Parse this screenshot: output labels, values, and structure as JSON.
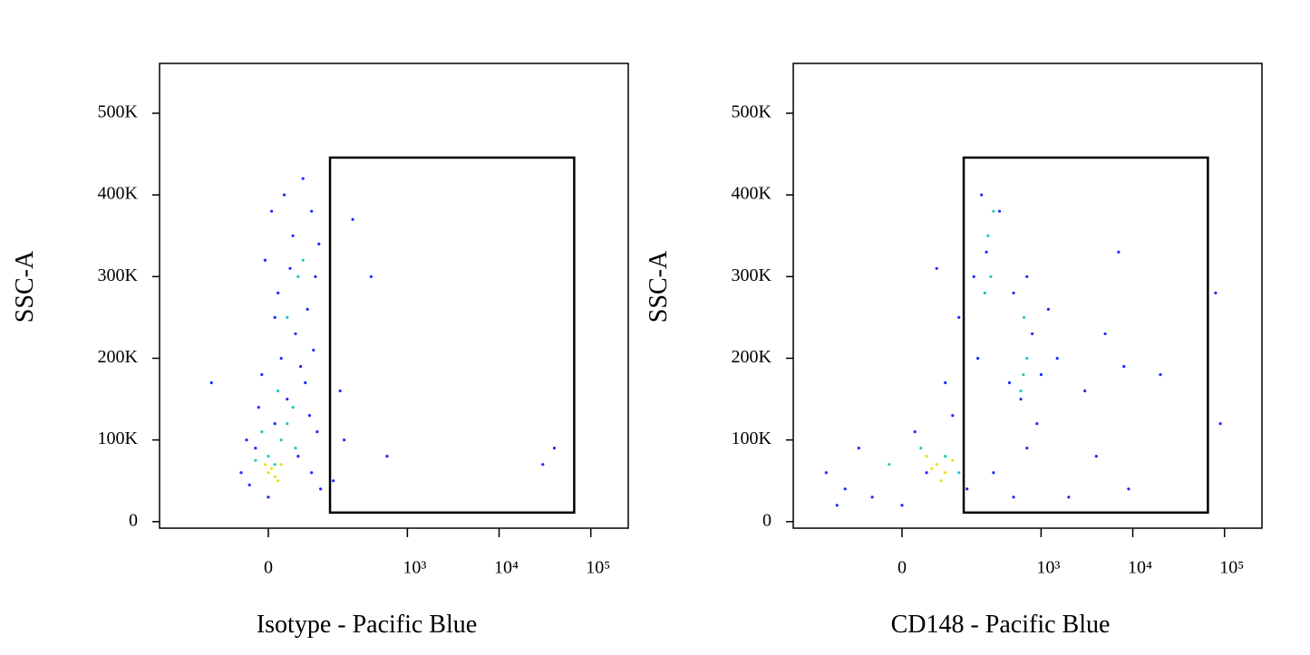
{
  "chart_data": [
    {
      "type": "scatter",
      "x_label": "Isotype - Pacific Blue",
      "y_label": "SSC-A",
      "xscale": "asinh",
      "xscale_width": 61,
      "xlim": [
        -466,
        256000
      ],
      "xticks": [
        0,
        {
          "value": 1000,
          "label": "10³"
        },
        {
          "value": 10000,
          "label": "10⁴"
        },
        {
          "value": 100000,
          "label": "10⁵"
        }
      ],
      "ylim": [
        -8000,
        561000
      ],
      "yticks": [
        0,
        {
          "value": 100000,
          "label": "100K"
        },
        {
          "value": 200000,
          "label": "200K"
        },
        {
          "value": 300000,
          "label": "300K"
        },
        {
          "value": 400000,
          "label": "400K"
        },
        {
          "value": 500000,
          "label": "500K"
        }
      ],
      "gate": {
        "x": [
          137,
          65900
        ],
        "y": [
          11100,
          445700
        ]
      },
      "series": [
        {
          "color": "#1f2bff",
          "x": [
            -45,
            -30,
            -20,
            0,
            10,
            30,
            50,
            80,
            95,
            -10,
            20,
            45,
            70,
            90,
            15,
            -5,
            40,
            80,
            25,
            60,
            100,
            10,
            -15,
            65,
            85,
            35,
            55,
            -35,
            105,
            75,
            -120,
            150,
            200,
            400,
            600,
            30000,
            40000,
            250,
            180,
            5
          ],
          "values": [
            60000,
            45000,
            90000,
            30000,
            120000,
            150000,
            80000,
            60000,
            110000,
            180000,
            200000,
            230000,
            260000,
            300000,
            280000,
            320000,
            350000,
            380000,
            400000,
            420000,
            340000,
            250000,
            140000,
            170000,
            210000,
            310000,
            190000,
            100000,
            40000,
            130000,
            170000,
            50000,
            100000,
            300000,
            80000,
            70000,
            90000,
            370000,
            160000,
            380000
          ]
        },
        {
          "color": "#22c8c0",
          "x": [
            0,
            20,
            30,
            -10,
            40,
            50,
            60,
            10,
            30,
            -20,
            15,
            45
          ],
          "values": [
            80000,
            100000,
            120000,
            110000,
            140000,
            300000,
            320000,
            70000,
            250000,
            75000,
            160000,
            90000
          ]
        },
        {
          "color": "#e8e020",
          "x": [
            0,
            10,
            20,
            5,
            -5,
            15
          ],
          "values": [
            60000,
            55000,
            70000,
            65000,
            70000,
            50000
          ]
        }
      ]
    },
    {
      "type": "scatter",
      "x_label": "CD148 - Pacific Blue",
      "y_label": "SSC-A",
      "xscale": "asinh",
      "xscale_width": 61,
      "xlim": [
        -466,
        256000
      ],
      "xticks": [
        0,
        {
          "value": 1000,
          "label": "10³"
        },
        {
          "value": 10000,
          "label": "10⁴"
        },
        {
          "value": 100000,
          "label": "10⁵"
        }
      ],
      "ylim": [
        -8000,
        561000
      ],
      "yticks": [
        0,
        {
          "value": 100000,
          "label": "100K"
        },
        {
          "value": 200000,
          "label": "200K"
        },
        {
          "value": 300000,
          "label": "300K"
        },
        {
          "value": 400000,
          "label": "400K"
        },
        {
          "value": 500000,
          "label": "500K"
        }
      ],
      "gate": {
        "x": [
          137,
          65900
        ],
        "y": [
          11100,
          445700
        ]
      },
      "series": [
        {
          "color": "#1f2bff",
          "x": [
            -200,
            -120,
            -80,
            -50,
            0,
            20,
            100,
            150,
            300,
            500,
            700,
            900,
            200,
            180,
            220,
            350,
            120,
            500,
            800,
            1000,
            600,
            1500,
            3000,
            5000,
            8000,
            4000,
            2000,
            7000,
            80000,
            90000,
            60,
            250,
            450,
            700,
            -150,
            40,
            80,
            1200,
            9000,
            20000
          ],
          "values": [
            60000,
            40000,
            90000,
            30000,
            20000,
            110000,
            130000,
            40000,
            60000,
            30000,
            90000,
            120000,
            200000,
            300000,
            400000,
            380000,
            250000,
            280000,
            230000,
            180000,
            150000,
            200000,
            160000,
            230000,
            190000,
            80000,
            30000,
            330000,
            280000,
            120000,
            310000,
            330000,
            170000,
            300000,
            20000,
            60000,
            170000,
            260000,
            40000,
            180000
          ]
        },
        {
          "color": "#22c8c0",
          "x": [
            260,
            280,
            240,
            650,
            700,
            600,
            30,
            80,
            -20,
            120,
            640,
            300
          ],
          "values": [
            350000,
            300000,
            280000,
            250000,
            200000,
            160000,
            90000,
            80000,
            70000,
            60000,
            180000,
            380000
          ]
        },
        {
          "color": "#e8e020",
          "x": [
            60,
            80,
            40,
            100,
            70,
            50
          ],
          "values": [
            70000,
            60000,
            80000,
            75000,
            50000,
            65000
          ]
        }
      ]
    }
  ]
}
